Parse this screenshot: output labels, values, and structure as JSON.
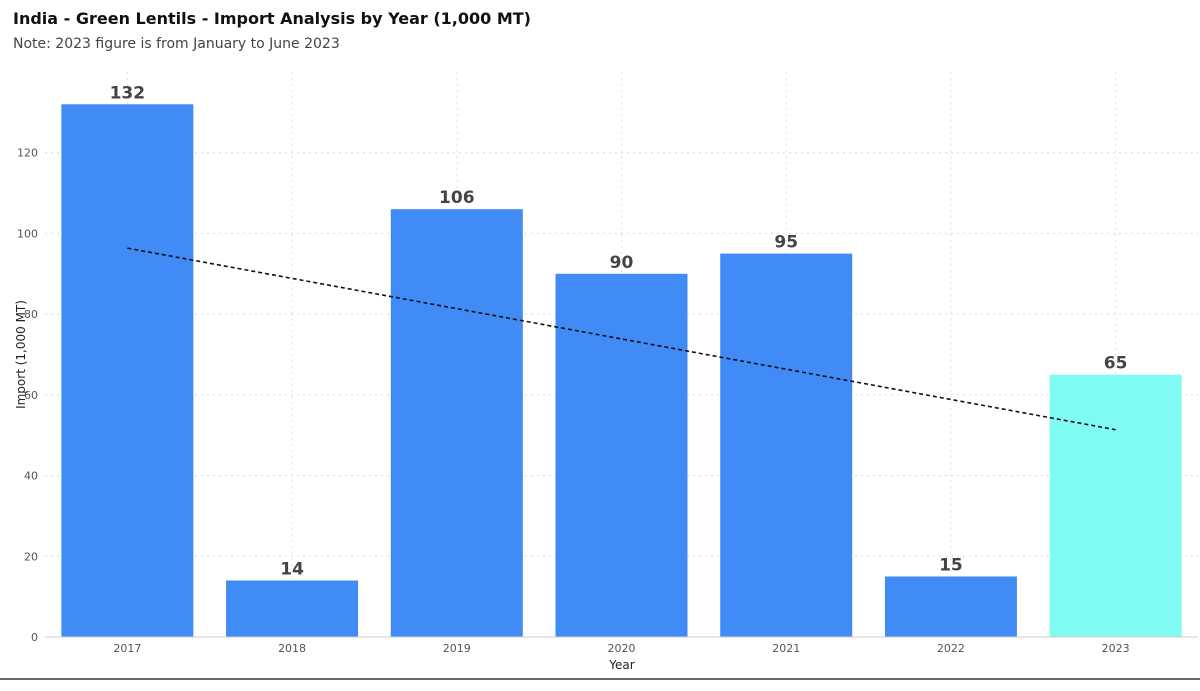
{
  "title": "India - Green Lentils - Import Analysis by Year (1,000 MT)",
  "subtitle": "Note: 2023 figure is from January to June 2023",
  "chart_data": {
    "type": "bar",
    "title": "India - Green Lentils - Import Analysis by Year (1,000 MT)",
    "subtitle": "Note: 2023 figure is from January to June 2023",
    "xlabel": "Year",
    "ylabel": "Import (1,000 MT)",
    "categories": [
      "2017",
      "2018",
      "2019",
      "2020",
      "2021",
      "2022",
      "2023"
    ],
    "values": [
      132,
      14,
      106,
      90,
      95,
      15,
      65
    ],
    "ylim": [
      0,
      140
    ],
    "yticks": [
      0,
      20,
      40,
      60,
      80,
      100,
      120
    ],
    "bar_colors": [
      "#418BF7",
      "#418BF7",
      "#418BF7",
      "#418BF7",
      "#418BF7",
      "#418BF7",
      "#80FBF3"
    ],
    "data_labels": true,
    "grid": true,
    "trendline": {
      "type": "linear",
      "style": "dotted",
      "color": "#111111"
    }
  }
}
